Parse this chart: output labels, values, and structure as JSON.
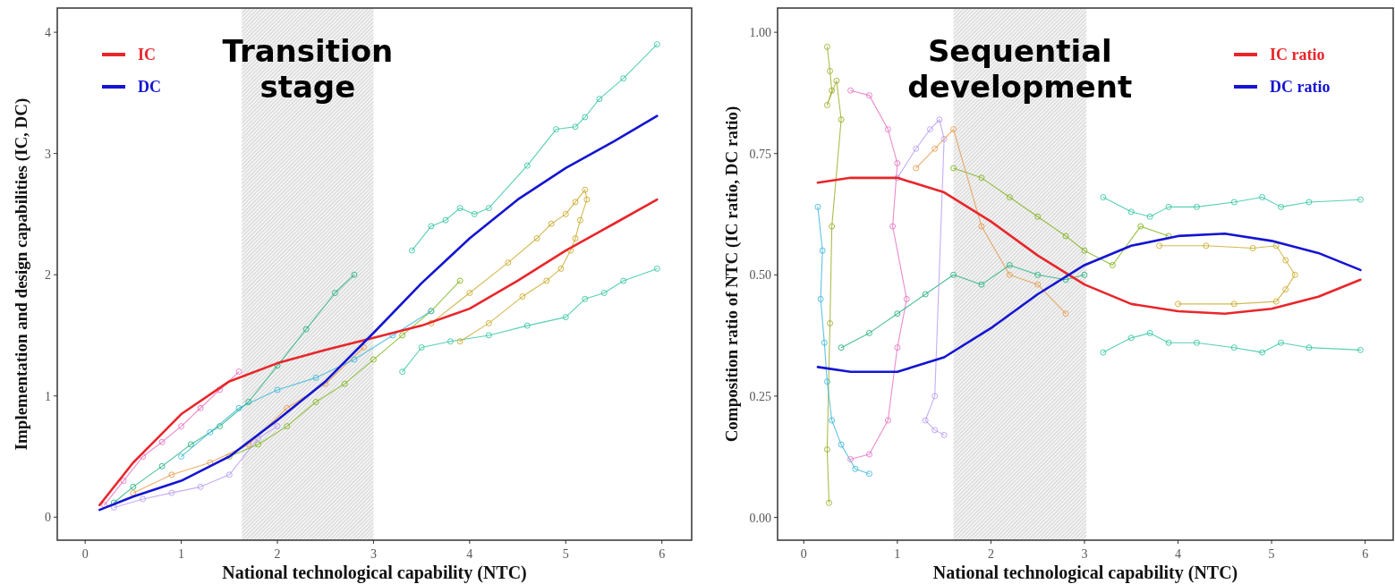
{
  "chart_data": [
    {
      "type": "line",
      "xlabel": "National technological capability (NTC)",
      "ylabel": "Implementation and design capabilities (IC, DC)",
      "xlim": [
        -0.29,
        6.31
      ],
      "ylim": [
        -0.19,
        4.2
      ],
      "xticks": [
        0,
        1,
        2,
        3,
        4,
        5,
        6
      ],
      "yticks": [
        0,
        1,
        2,
        3,
        4
      ],
      "legend": "top left",
      "bands": [
        {
          "axis": "x",
          "from": 1.63,
          "to": 3.0,
          "label": "Transition stage",
          "color": "#bdbdbd"
        }
      ],
      "series": [
        {
          "color": "#2ec4a0",
          "marker": "circle",
          "x": [
            3.4,
            3.6,
            3.75,
            3.9,
            4.05,
            4.2,
            4.6,
            4.9,
            5.1,
            5.2,
            5.35,
            5.6,
            5.95
          ],
          "values": [
            2.2,
            2.4,
            2.45,
            2.55,
            2.5,
            2.55,
            2.9,
            3.2,
            3.22,
            3.3,
            3.45,
            3.62,
            3.9
          ]
        },
        {
          "color": "#2ec4a0",
          "marker": "circle",
          "x": [
            3.3,
            3.5,
            3.8,
            4.2,
            4.6,
            5.0,
            5.2,
            5.4,
            5.6,
            5.95
          ],
          "values": [
            1.2,
            1.4,
            1.45,
            1.5,
            1.58,
            1.65,
            1.8,
            1.85,
            1.95,
            2.05
          ]
        },
        {
          "color": "#c9a825",
          "marker": "circle",
          "x": [
            3.6,
            4.0,
            4.4,
            4.7,
            4.85,
            5.0,
            5.1,
            5.2,
            5.22,
            5.15,
            5.1,
            5.05,
            4.95,
            4.8,
            4.55,
            4.2,
            3.9
          ],
          "values": [
            1.6,
            1.85,
            2.1,
            2.3,
            2.42,
            2.5,
            2.6,
            2.7,
            2.62,
            2.45,
            2.3,
            2.2,
            2.05,
            1.95,
            1.82,
            1.6,
            1.45
          ]
        },
        {
          "color": "#1fb07a",
          "marker": "circle",
          "x": [
            0.3,
            0.5,
            0.8,
            1.1,
            1.4,
            1.7,
            2.0,
            2.3,
            2.6,
            2.8
          ],
          "values": [
            0.12,
            0.25,
            0.42,
            0.6,
            0.75,
            0.95,
            1.25,
            1.55,
            1.85,
            2.0
          ]
        },
        {
          "color": "#e56fc0",
          "marker": "circle",
          "x": [
            0.2,
            0.4,
            0.6,
            0.8,
            1.0,
            1.2,
            1.4,
            1.6
          ],
          "values": [
            0.1,
            0.3,
            0.5,
            0.62,
            0.75,
            0.9,
            1.05,
            1.2
          ]
        },
        {
          "color": "#b79af0",
          "marker": "circle",
          "x": [
            0.3,
            0.6,
            0.9,
            1.2,
            1.5,
            1.8,
            2.0
          ],
          "values": [
            0.08,
            0.15,
            0.2,
            0.25,
            0.35,
            0.65,
            0.75
          ]
        },
        {
          "color": "#7cb317",
          "marker": "circle",
          "x": [
            1.5,
            1.8,
            2.1,
            2.4,
            2.7,
            3.0,
            3.3,
            3.6,
            3.9
          ],
          "values": [
            0.5,
            0.6,
            0.75,
            0.95,
            1.1,
            1.3,
            1.5,
            1.7,
            1.95
          ]
        },
        {
          "color": "#e59a4a",
          "marker": "circle",
          "x": [
            0.5,
            0.9,
            1.3,
            1.7,
            2.1,
            2.5,
            2.9
          ],
          "values": [
            0.2,
            0.35,
            0.45,
            0.6,
            0.9,
            1.1,
            1.4
          ]
        },
        {
          "color": "#37b6d9",
          "marker": "circle",
          "x": [
            1.0,
            1.3,
            1.6,
            2.0,
            2.4,
            2.8,
            3.2,
            3.6
          ],
          "values": [
            0.5,
            0.7,
            0.9,
            1.05,
            1.15,
            1.3,
            1.5,
            1.7
          ]
        },
        {
          "name": "IC",
          "color": "#e8262b",
          "marker": "none",
          "x": [
            0.15,
            0.5,
            1,
            1.5,
            2,
            2.5,
            3,
            3.5,
            4,
            4.5,
            5,
            5.5,
            5.95
          ],
          "values": [
            0.1,
            0.45,
            0.85,
            1.12,
            1.27,
            1.38,
            1.48,
            1.58,
            1.72,
            1.95,
            2.2,
            2.42,
            2.62
          ]
        },
        {
          "name": "DC",
          "color": "#1414d2",
          "marker": "none",
          "x": [
            0.15,
            0.5,
            1,
            1.5,
            2,
            2.5,
            3,
            3.5,
            4,
            4.5,
            5,
            5.5,
            5.95
          ],
          "values": [
            0.06,
            0.17,
            0.3,
            0.5,
            0.8,
            1.12,
            1.52,
            1.93,
            2.3,
            2.62,
            2.88,
            3.1,
            3.31
          ]
        }
      ]
    },
    {
      "type": "line",
      "xlabel": "National technological capability (NTC)",
      "ylabel": "Composition ratio of NTC (IC ratio, DC ratio)",
      "xlim": [
        -0.28,
        6.3
      ],
      "ylim": [
        -0.047,
        1.05
      ],
      "xticks": [
        0,
        1,
        2,
        3,
        4,
        5,
        6
      ],
      "yticks": [
        {
          "value": 0,
          "label": "0.00"
        },
        {
          "value": 0.25,
          "label": "0.25"
        },
        {
          "value": 0.5,
          "label": "0.50"
        },
        {
          "value": 0.75,
          "label": "0.75"
        },
        {
          "value": 1,
          "label": "1.00"
        }
      ],
      "legend": "top right",
      "bands": [
        {
          "axis": "x",
          "from": 1.6,
          "to": 3.02,
          "label": "Sequential development",
          "color": "#bdbdbd"
        }
      ],
      "series": [
        {
          "color": "#2ec4a0",
          "marker": "circle",
          "x": [
            3.2,
            3.5,
            3.7,
            3.9,
            4.2,
            4.6,
            4.9,
            5.1,
            5.4,
            5.95
          ],
          "values": [
            0.66,
            0.63,
            0.62,
            0.64,
            0.64,
            0.65,
            0.66,
            0.64,
            0.65,
            0.655
          ]
        },
        {
          "color": "#2ec4a0",
          "marker": "circle",
          "x": [
            3.2,
            3.5,
            3.7,
            3.9,
            4.2,
            4.6,
            4.9,
            5.1,
            5.4,
            5.95
          ],
          "values": [
            0.34,
            0.37,
            0.38,
            0.36,
            0.36,
            0.35,
            0.34,
            0.36,
            0.35,
            0.345
          ]
        },
        {
          "color": "#c9a825",
          "marker": "circle",
          "x": [
            3.8,
            4.3,
            4.8,
            5.05,
            5.15,
            5.25,
            5.15,
            5.05,
            4.6,
            4.0
          ],
          "values": [
            0.56,
            0.56,
            0.555,
            0.56,
            0.53,
            0.5,
            0.47,
            0.445,
            0.44,
            0.44
          ]
        },
        {
          "color": "#9aab1f",
          "marker": "circle",
          "x": [
            0.25,
            0.28,
            0.3,
            0.25,
            0.35,
            0.4,
            0.3,
            0.28,
            0.25,
            0.27
          ],
          "values": [
            0.97,
            0.92,
            0.88,
            0.85,
            0.9,
            0.82,
            0.6,
            0.4,
            0.14,
            0.03
          ]
        },
        {
          "color": "#37b6d9",
          "marker": "circle",
          "x": [
            0.15,
            0.2,
            0.18,
            0.22,
            0.25,
            0.3,
            0.4,
            0.55,
            0.7
          ],
          "values": [
            0.64,
            0.55,
            0.45,
            0.36,
            0.28,
            0.2,
            0.15,
            0.1,
            0.09
          ]
        },
        {
          "color": "#e56fc0",
          "marker": "circle",
          "x": [
            0.5,
            0.7,
            0.9,
            1.0,
            0.95,
            1.1,
            1.0,
            0.9,
            0.7,
            0.5
          ],
          "values": [
            0.88,
            0.87,
            0.8,
            0.73,
            0.6,
            0.45,
            0.35,
            0.2,
            0.13,
            0.12
          ]
        },
        {
          "color": "#1fb07a",
          "marker": "circle",
          "x": [
            0.4,
            0.7,
            1.0,
            1.3,
            1.6,
            1.9,
            2.2,
            2.5,
            2.8,
            3.0
          ],
          "values": [
            0.35,
            0.38,
            0.42,
            0.46,
            0.5,
            0.48,
            0.52,
            0.5,
            0.49,
            0.5
          ]
        },
        {
          "color": "#b79af0",
          "marker": "circle",
          "x": [
            1.0,
            1.2,
            1.35,
            1.45,
            1.5,
            1.4,
            1.3,
            1.4,
            1.5
          ],
          "values": [
            0.7,
            0.76,
            0.8,
            0.82,
            0.78,
            0.25,
            0.2,
            0.18,
            0.17
          ]
        },
        {
          "color": "#7cb317",
          "marker": "circle",
          "x": [
            1.6,
            1.9,
            2.2,
            2.5,
            2.8,
            3.0,
            3.3,
            3.6,
            3.9
          ],
          "values": [
            0.72,
            0.7,
            0.66,
            0.62,
            0.58,
            0.55,
            0.52,
            0.6,
            0.58
          ]
        },
        {
          "color": "#e59a4a",
          "marker": "circle",
          "x": [
            1.2,
            1.4,
            1.6,
            1.9,
            2.2,
            2.5,
            2.8
          ],
          "values": [
            0.72,
            0.76,
            0.8,
            0.6,
            0.5,
            0.48,
            0.42
          ]
        },
        {
          "name": "IC ratio",
          "color": "#e8262b",
          "marker": "none",
          "x": [
            0.15,
            0.5,
            1,
            1.5,
            2,
            2.5,
            3,
            3.5,
            4,
            4.5,
            5,
            5.5,
            5.95
          ],
          "values": [
            0.69,
            0.7,
            0.7,
            0.67,
            0.61,
            0.54,
            0.48,
            0.44,
            0.425,
            0.42,
            0.43,
            0.455,
            0.49
          ]
        },
        {
          "name": "DC ratio",
          "color": "#1414d2",
          "marker": "none",
          "x": [
            0.15,
            0.5,
            1,
            1.5,
            2,
            2.5,
            3,
            3.5,
            4,
            4.5,
            5,
            5.5,
            5.95
          ],
          "values": [
            0.31,
            0.3,
            0.3,
            0.33,
            0.39,
            0.46,
            0.52,
            0.56,
            0.58,
            0.585,
            0.57,
            0.545,
            0.51
          ]
        }
      ]
    }
  ]
}
